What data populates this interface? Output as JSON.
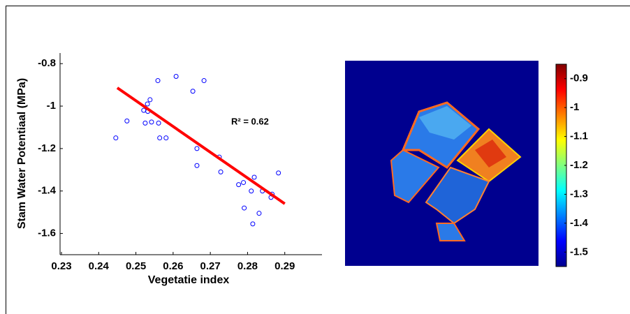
{
  "chart_data": [
    {
      "type": "scatter",
      "xlabel": "Vegetatie index",
      "ylabel": "Stam Water Potentiaal (MPa)",
      "annotation": "R² = 0.62",
      "xlim": [
        0.23,
        0.3
      ],
      "ylim": [
        -1.7,
        -0.75
      ],
      "xticks": [
        0.23,
        0.24,
        0.25,
        0.26,
        0.27,
        0.28,
        0.29
      ],
      "yticks": [
        -1.6,
        -1.4,
        -1.2,
        -1,
        -0.8
      ],
      "color": "#0000ff",
      "x": [
        0.2446,
        0.2476,
        0.2521,
        0.2525,
        0.2531,
        0.2532,
        0.2538,
        0.2542,
        0.2559,
        0.2561,
        0.2564,
        0.2581,
        0.2608,
        0.2653,
        0.2664,
        0.2664,
        0.2683,
        0.2724,
        0.2728,
        0.2776,
        0.2789,
        0.2791,
        0.281,
        0.2814,
        0.2818,
        0.2831,
        0.284,
        0.2863,
        0.2866,
        0.2883
      ],
      "values": [
        -1.15,
        -1.07,
        -1.02,
        -1.08,
        -0.99,
        -1.025,
        -0.97,
        -1.075,
        -0.88,
        -1.08,
        -1.15,
        -1.15,
        -0.86,
        -0.93,
        -1.2,
        -1.28,
        -0.88,
        -1.24,
        -1.31,
        -1.37,
        -1.36,
        -1.48,
        -1.4,
        -1.555,
        -1.335,
        -1.505,
        -1.4,
        -1.43,
        -1.415,
        -1.315
      ],
      "fit": {
        "x": [
          0.245,
          0.29
        ],
        "values": [
          -0.914,
          -1.46
        ],
        "color": "#ff0000"
      }
    },
    {
      "type": "heatmap",
      "clim": [
        -1.55,
        -0.85
      ],
      "cticks": [
        -1.5,
        -1.4,
        -1.3,
        -1.2,
        -1.1,
        -1,
        -0.9
      ]
    }
  ]
}
